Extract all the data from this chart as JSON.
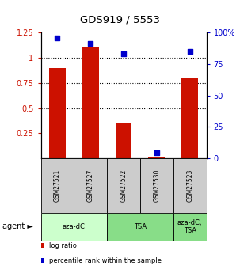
{
  "title": "GDS919 / 5553",
  "samples": [
    "GSM27521",
    "GSM27527",
    "GSM27522",
    "GSM27530",
    "GSM27523"
  ],
  "log_ratio": [
    0.9,
    1.1,
    0.35,
    0.02,
    0.8
  ],
  "percentile_rank": [
    96.0,
    91.5,
    83.0,
    4.5,
    85.0
  ],
  "bar_color": "#cc1100",
  "dot_color": "#0000cc",
  "ylim_left": [
    0.0,
    1.25
  ],
  "ylim_right": [
    0,
    100
  ],
  "yticks_left": [
    0.25,
    0.5,
    0.75,
    1.0,
    1.25
  ],
  "yticks_right": [
    0,
    25,
    50,
    75,
    100
  ],
  "ytick_labels_left": [
    "0.25",
    "0.5",
    "0.75",
    "1",
    "1.25"
  ],
  "ytick_labels_right": [
    "0",
    "25",
    "50",
    "75",
    "100%"
  ],
  "hlines": [
    0.5,
    0.75,
    1.0
  ],
  "group_configs": [
    {
      "start": 0,
      "end": 1,
      "label": "aza-dC",
      "color": "#ccffcc"
    },
    {
      "start": 2,
      "end": 3,
      "label": "TSA",
      "color": "#88dd88"
    },
    {
      "start": 4,
      "end": 4,
      "label": "aza-dC,\nTSA",
      "color": "#88dd88"
    }
  ],
  "sample_box_color": "#cccccc",
  "legend_items": [
    {
      "label": "log ratio",
      "color": "#cc1100"
    },
    {
      "label": "percentile rank within the sample",
      "color": "#0000cc"
    }
  ]
}
